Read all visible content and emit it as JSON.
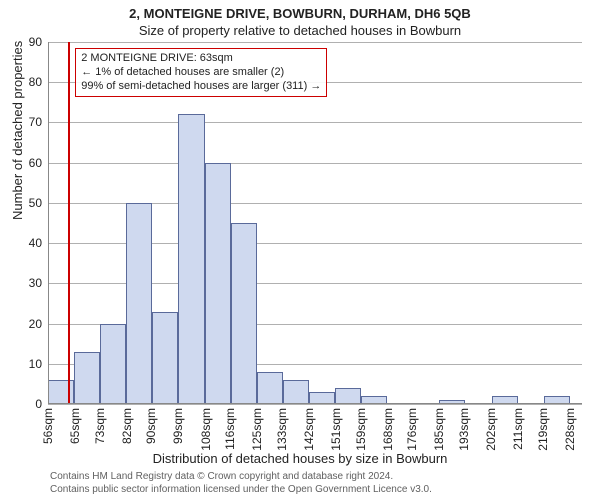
{
  "title_main": "2, MONTEIGNE DRIVE, BOWBURN, DURHAM, DH6 5QB",
  "title_sub": "Size of property relative to detached houses in Bowburn",
  "y_axis_label": "Number of detached properties",
  "x_axis_label": "Distribution of detached houses by size in Bowburn",
  "attribution_line1": "Contains HM Land Registry data © Crown copyright and database right 2024.",
  "attribution_line2": "Contains public sector information licensed under the Open Government Licence v3.0.",
  "chart": {
    "type": "histogram",
    "background_color": "#ffffff",
    "grid_color": "#b0b0b0",
    "bar_fill": "#cfd9ef",
    "bar_stroke": "#5a6a9a",
    "marker_color": "#cc0000",
    "annotation_border": "#cc0000",
    "x_min": 56,
    "x_max": 232,
    "ylim": [
      0,
      90
    ],
    "ytick_step": 10,
    "x_ticks": [
      56,
      65,
      73,
      82,
      90,
      99,
      108,
      116,
      125,
      133,
      142,
      151,
      159,
      168,
      176,
      185,
      193,
      202,
      211,
      219,
      228
    ],
    "x_tick_suffix": "sqm",
    "bin_width": 8.6,
    "bars": [
      {
        "x": 56,
        "h": 6
      },
      {
        "x": 64.6,
        "h": 13
      },
      {
        "x": 73.2,
        "h": 20
      },
      {
        "x": 81.8,
        "h": 50
      },
      {
        "x": 90.4,
        "h": 23
      },
      {
        "x": 99.0,
        "h": 72
      },
      {
        "x": 107.6,
        "h": 60
      },
      {
        "x": 116.2,
        "h": 45
      },
      {
        "x": 124.8,
        "h": 8
      },
      {
        "x": 133.4,
        "h": 6
      },
      {
        "x": 142.0,
        "h": 3
      },
      {
        "x": 150.6,
        "h": 4
      },
      {
        "x": 159.2,
        "h": 2
      },
      {
        "x": 167.8,
        "h": 0
      },
      {
        "x": 176.4,
        "h": 0
      },
      {
        "x": 185.0,
        "h": 1
      },
      {
        "x": 193.6,
        "h": 0
      },
      {
        "x": 202.2,
        "h": 2
      },
      {
        "x": 210.8,
        "h": 0
      },
      {
        "x": 219.4,
        "h": 2
      }
    ],
    "marker_x": 63,
    "annotation": {
      "line1": "2 MONTEIGNE DRIVE: 63sqm",
      "line2": "← 1% of detached houses are smaller (2)",
      "line3": "99% of semi-detached houses are larger (311) →"
    }
  }
}
